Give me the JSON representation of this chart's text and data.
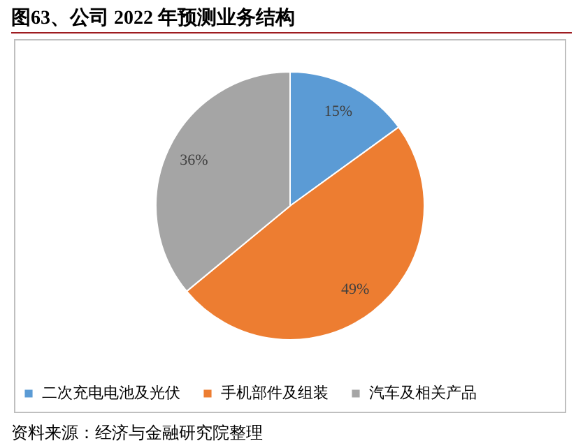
{
  "chart_data": {
    "type": "pie",
    "title": "图63、公司 2022 年预测业务结构",
    "categories": [
      "二次充电电池及光伏",
      "手机部件及组装",
      "汽车及相关产品"
    ],
    "values": [
      15,
      49,
      36
    ],
    "colors": [
      "#5b9bd5",
      "#ed7d31",
      "#a5a5a5"
    ],
    "value_labels": [
      "15%",
      "49%",
      "36%"
    ],
    "legend": "bottom",
    "annotations": [
      "资料来源：经济与金融研究院整理"
    ]
  }
}
